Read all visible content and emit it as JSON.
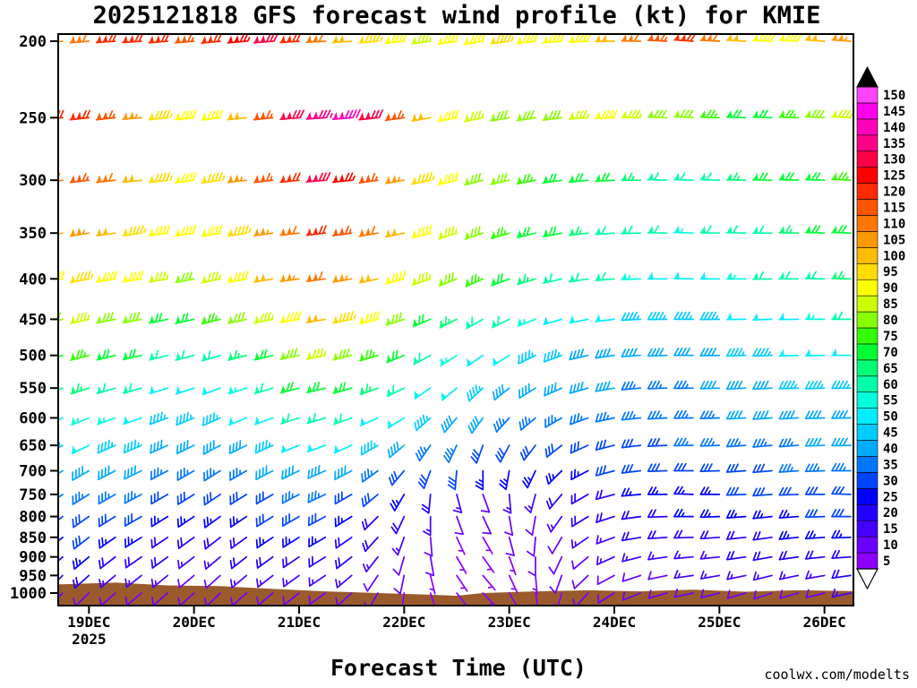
{
  "title": "2025121818 GFS forecast wind profile (kt) for KMIE",
  "xlabel": "Forecast Time (UTC)",
  "watermark": "coolwx.com/modelts",
  "watermark_color": "#fa8072",
  "axes": {
    "pressure_levels": [
      200,
      250,
      300,
      350,
      400,
      450,
      500,
      550,
      600,
      650,
      700,
      750,
      800,
      850,
      900,
      950,
      1000
    ],
    "x_ticks": [
      "19DEC",
      "20DEC",
      "21DEC",
      "22DEC",
      "23DEC",
      "24DEC",
      "25DEC",
      "26DEC"
    ],
    "x_year": "2025"
  },
  "colorbar": {
    "min": 5,
    "max": 150,
    "step": 5,
    "units": "kt",
    "colors": [
      "#8b00ff",
      "#6a00ff",
      "#4400ff",
      "#2200ff",
      "#0000ff",
      "#0044ff",
      "#0077ff",
      "#00aaff",
      "#00ccff",
      "#00eeff",
      "#00ffdd",
      "#00ffaa",
      "#00ff77",
      "#00ff33",
      "#33ff00",
      "#88ff00",
      "#ccff00",
      "#ffff00",
      "#ffdd00",
      "#ffbb00",
      "#ff9900",
      "#ff7700",
      "#ff5500",
      "#ff2a00",
      "#ff0000",
      "#ff0044",
      "#ff0088",
      "#ff00bb",
      "#ff00ee",
      "#ff44ff"
    ]
  },
  "terrain_color": "#9a5b2c",
  "chart_data": {
    "type": "wind-barb-profile",
    "init": "2025121818",
    "units": "kt",
    "time_hours": [
      0,
      6,
      12,
      18,
      24,
      30,
      36,
      42,
      48,
      54,
      60,
      66,
      72,
      78,
      84,
      90,
      96,
      102,
      108,
      114,
      120,
      126,
      132,
      138,
      144,
      150,
      156,
      162,
      168,
      174,
      180
    ],
    "levels_hpa": [
      200,
      250,
      300,
      350,
      400,
      450,
      500,
      550,
      600,
      650,
      700,
      750,
      800,
      850,
      900,
      950,
      1000
    ],
    "series": [
      {
        "p": 200,
        "spd": [
          105,
          112,
          118,
          122,
          120,
          116,
          118,
          124,
          128,
          122,
          112,
          102,
          95,
          90,
          86,
          88,
          92,
          96,
          92,
          88,
          92,
          100,
          108,
          114,
          118,
          112,
          98,
          88,
          92,
          100,
          106
        ],
        "dir": [
          265,
          265,
          266,
          266,
          265,
          265,
          264,
          265,
          265,
          266,
          267,
          266,
          265,
          264,
          262,
          261,
          260,
          262,
          263,
          265,
          267,
          269,
          271,
          273,
          274,
          273,
          273,
          272,
          273,
          274,
          274
        ]
      },
      {
        "p": 250,
        "spd": [
          118,
          122,
          114,
          104,
          95,
          90,
          92,
          102,
          116,
          128,
          136,
          138,
          128,
          114,
          100,
          90,
          85,
          82,
          80,
          82,
          85,
          88,
          84,
          80,
          78,
          75,
          72,
          70,
          75,
          80,
          85
        ],
        "dir": [
          263,
          264,
          264,
          265,
          264,
          264,
          263,
          264,
          264,
          265,
          266,
          265,
          264,
          262,
          260,
          259,
          258,
          260,
          261,
          263,
          266,
          268,
          271,
          272,
          273,
          272,
          272,
          272,
          272,
          273,
          273
        ]
      },
      {
        "p": 300,
        "spd": [
          112,
          115,
          108,
          100,
          95,
          92,
          96,
          105,
          115,
          122,
          128,
          124,
          114,
          104,
          95,
          88,
          82,
          78,
          75,
          72,
          70,
          68,
          65,
          62,
          60,
          62,
          65,
          68,
          70,
          72,
          75
        ],
        "dir": [
          262,
          263,
          263,
          264,
          263,
          262,
          262,
          263,
          263,
          264,
          265,
          264,
          262,
          260,
          258,
          256,
          255,
          257,
          259,
          262,
          264,
          267,
          270,
          272,
          272,
          272,
          271,
          271,
          272,
          272,
          273
        ]
      },
      {
        "p": 350,
        "spd": [
          100,
          105,
          100,
          95,
          90,
          88,
          92,
          96,
          105,
          112,
          118,
          114,
          108,
          100,
          92,
          85,
          80,
          75,
          70,
          68,
          65,
          62,
          60,
          58,
          56,
          58,
          60,
          62,
          65,
          68,
          70
        ],
        "dir": [
          260,
          261,
          262,
          262,
          262,
          261,
          260,
          261,
          262,
          263,
          263,
          262,
          260,
          258,
          255,
          252,
          251,
          253,
          256,
          259,
          263,
          266,
          269,
          271,
          272,
          271,
          271,
          270,
          271,
          272,
          272
        ]
      },
      {
        "p": 400,
        "spd": [
          90,
          95,
          92,
          88,
          85,
          82,
          86,
          90,
          98,
          105,
          110,
          107,
          100,
          92,
          85,
          80,
          75,
          70,
          65,
          62,
          60,
          58,
          55,
          52,
          50,
          52,
          55,
          58,
          60,
          62,
          65
        ],
        "dir": [
          258,
          259,
          260,
          261,
          260,
          259,
          258,
          259,
          260,
          262,
          262,
          260,
          258,
          255,
          251,
          248,
          246,
          249,
          253,
          257,
          261,
          265,
          268,
          270,
          271,
          270,
          270,
          269,
          270,
          271,
          271
        ]
      },
      {
        "p": 450,
        "spd": [
          80,
          86,
          82,
          78,
          72,
          70,
          73,
          78,
          86,
          92,
          98,
          95,
          88,
          80,
          72,
          66,
          62,
          58,
          55,
          52,
          50,
          48,
          46,
          45,
          44,
          45,
          48,
          50,
          52,
          55,
          58
        ],
        "dir": [
          256,
          257,
          258,
          259,
          258,
          257,
          256,
          257,
          258,
          260,
          260,
          258,
          256,
          252,
          247,
          243,
          241,
          244,
          249,
          254,
          259,
          263,
          267,
          269,
          270,
          269,
          269,
          268,
          269,
          270,
          270
        ]
      },
      {
        "p": 500,
        "spd": [
          68,
          75,
          72,
          68,
          62,
          58,
          61,
          65,
          72,
          80,
          85,
          82,
          75,
          68,
          60,
          55,
          50,
          48,
          45,
          44,
          42,
          42,
          40,
          40,
          40,
          42,
          44,
          46,
          48,
          50,
          52
        ],
        "dir": [
          253,
          255,
          256,
          257,
          256,
          255,
          253,
          255,
          256,
          258,
          258,
          256,
          253,
          248,
          242,
          237,
          235,
          238,
          244,
          250,
          257,
          262,
          266,
          268,
          270,
          269,
          268,
          268,
          268,
          269,
          270
        ]
      },
      {
        "p": 550,
        "spd": [
          58,
          65,
          62,
          58,
          52,
          50,
          52,
          56,
          62,
          68,
          72,
          70,
          64,
          58,
          52,
          48,
          45,
          42,
          40,
          40,
          38,
          38,
          37,
          36,
          36,
          38,
          40,
          42,
          44,
          45,
          46
        ],
        "dir": [
          250,
          252,
          253,
          254,
          253,
          252,
          250,
          252,
          253,
          255,
          256,
          254,
          250,
          244,
          236,
          230,
          227,
          231,
          238,
          246,
          254,
          260,
          265,
          268,
          269,
          268,
          267,
          267,
          268,
          268,
          269
        ]
      },
      {
        "p": 600,
        "spd": [
          50,
          56,
          54,
          50,
          46,
          44,
          45,
          48,
          52,
          58,
          60,
          58,
          52,
          48,
          44,
          40,
          38,
          36,
          35,
          34,
          34,
          34,
          35,
          35,
          36,
          36,
          38,
          40,
          40,
          42,
          42
        ],
        "dir": [
          246,
          248,
          250,
          251,
          250,
          248,
          246,
          248,
          250,
          252,
          253,
          250,
          246,
          238,
          228,
          220,
          216,
          222,
          230,
          240,
          250,
          258,
          264,
          267,
          269,
          268,
          267,
          266,
          267,
          268,
          269
        ]
      },
      {
        "p": 650,
        "spd": [
          44,
          48,
          46,
          44,
          40,
          38,
          38,
          40,
          44,
          48,
          50,
          48,
          44,
          40,
          36,
          34,
          32,
          30,
          30,
          30,
          30,
          30,
          32,
          32,
          34,
          34,
          35,
          36,
          36,
          38,
          38
        ],
        "dir": [
          242,
          244,
          246,
          247,
          246,
          244,
          242,
          244,
          246,
          248,
          250,
          246,
          240,
          230,
          215,
          205,
          200,
          208,
          218,
          232,
          246,
          256,
          263,
          267,
          269,
          268,
          266,
          265,
          266,
          268,
          269
        ]
      },
      {
        "p": 700,
        "spd": [
          38,
          42,
          40,
          38,
          35,
          34,
          34,
          35,
          38,
          40,
          42,
          40,
          36,
          32,
          30,
          28,
          26,
          25,
          25,
          26,
          26,
          28,
          28,
          30,
          30,
          30,
          32,
          32,
          34,
          34,
          35
        ],
        "dir": [
          238,
          240,
          242,
          244,
          242,
          240,
          238,
          240,
          242,
          244,
          246,
          242,
          234,
          220,
          200,
          185,
          180,
          190,
          205,
          225,
          242,
          255,
          263,
          268,
          270,
          268,
          266,
          265,
          266,
          268,
          270
        ]
      },
      {
        "p": 750,
        "spd": [
          34,
          36,
          35,
          34,
          32,
          30,
          30,
          30,
          32,
          34,
          35,
          32,
          28,
          24,
          20,
          15,
          12,
          14,
          16,
          18,
          20,
          22,
          24,
          25,
          26,
          26,
          28,
          28,
          30,
          30,
          32
        ],
        "dir": [
          235,
          238,
          240,
          242,
          240,
          238,
          236,
          238,
          240,
          242,
          245,
          240,
          230,
          210,
          185,
          165,
          160,
          175,
          195,
          220,
          240,
          255,
          265,
          270,
          272,
          270,
          268,
          266,
          268,
          270,
          272
        ]
      },
      {
        "p": 800,
        "spd": [
          30,
          32,
          30,
          28,
          26,
          25,
          25,
          26,
          28,
          28,
          28,
          26,
          22,
          18,
          14,
          10,
          8,
          10,
          12,
          15,
          18,
          20,
          22,
          22,
          24,
          24,
          25,
          26,
          26,
          28,
          28
        ],
        "dir": [
          232,
          235,
          238,
          240,
          238,
          236,
          234,
          236,
          238,
          240,
          242,
          238,
          225,
          205,
          180,
          160,
          155,
          170,
          190,
          215,
          238,
          252,
          262,
          268,
          270,
          268,
          266,
          264,
          266,
          268,
          270
        ]
      },
      {
        "p": 850,
        "spd": [
          26,
          28,
          26,
          25,
          22,
          20,
          20,
          22,
          24,
          24,
          24,
          22,
          18,
          15,
          10,
          7,
          5,
          8,
          10,
          12,
          15,
          16,
          18,
          18,
          20,
          20,
          22,
          22,
          24,
          24,
          25
        ],
        "dir": [
          230,
          232,
          235,
          238,
          236,
          234,
          232,
          234,
          236,
          238,
          240,
          235,
          222,
          200,
          175,
          155,
          150,
          165,
          185,
          210,
          235,
          250,
          260,
          266,
          268,
          266,
          264,
          262,
          264,
          266,
          268
        ]
      },
      {
        "p": 900,
        "spd": [
          22,
          24,
          22,
          20,
          18,
          16,
          16,
          18,
          20,
          20,
          20,
          18,
          15,
          12,
          8,
          5,
          5,
          6,
          8,
          10,
          12,
          14,
          15,
          15,
          16,
          16,
          18,
          18,
          20,
          20,
          22
        ],
        "dir": [
          228,
          230,
          232,
          235,
          234,
          232,
          230,
          232,
          234,
          236,
          238,
          232,
          218,
          196,
          170,
          150,
          145,
          160,
          180,
          205,
          230,
          246,
          256,
          262,
          265,
          264,
          262,
          260,
          262,
          264,
          266
        ]
      },
      {
        "p": 950,
        "spd": [
          16,
          18,
          16,
          15,
          14,
          12,
          12,
          14,
          15,
          16,
          16,
          15,
          12,
          10,
          6,
          5,
          5,
          5,
          6,
          8,
          10,
          12,
          12,
          12,
          14,
          14,
          15,
          15,
          16,
          16,
          18
        ],
        "dir": [
          226,
          228,
          230,
          232,
          231,
          230,
          228,
          230,
          232,
          234,
          236,
          230,
          214,
          192,
          166,
          146,
          140,
          155,
          175,
          200,
          226,
          242,
          252,
          258,
          262,
          260,
          258,
          256,
          258,
          260,
          262
        ]
      },
      {
        "p": 1000,
        "spd": [
          10,
          12,
          10,
          10,
          8,
          8,
          8,
          10,
          10,
          12,
          12,
          10,
          8,
          6,
          5,
          5,
          5,
          5,
          5,
          6,
          8,
          8,
          10,
          10,
          10,
          10,
          12,
          12,
          12,
          12,
          14
        ],
        "dir": [
          225,
          226,
          228,
          230,
          229,
          228,
          226,
          228,
          230,
          232,
          234,
          228,
          210,
          188,
          162,
          142,
          136,
          150,
          170,
          196,
          222,
          238,
          248,
          254,
          258,
          256,
          254,
          252,
          254,
          256,
          258
        ]
      }
    ],
    "terrain": {
      "t": [
        0,
        12,
        24,
        36,
        48,
        60,
        72,
        84,
        90,
        96,
        108,
        120,
        132,
        144,
        156,
        168,
        180
      ],
      "p": [
        975,
        970,
        978,
        980,
        988,
        995,
        1000,
        1005,
        1008,
        1000,
        995,
        992,
        995,
        990,
        996,
        992,
        994
      ]
    }
  }
}
